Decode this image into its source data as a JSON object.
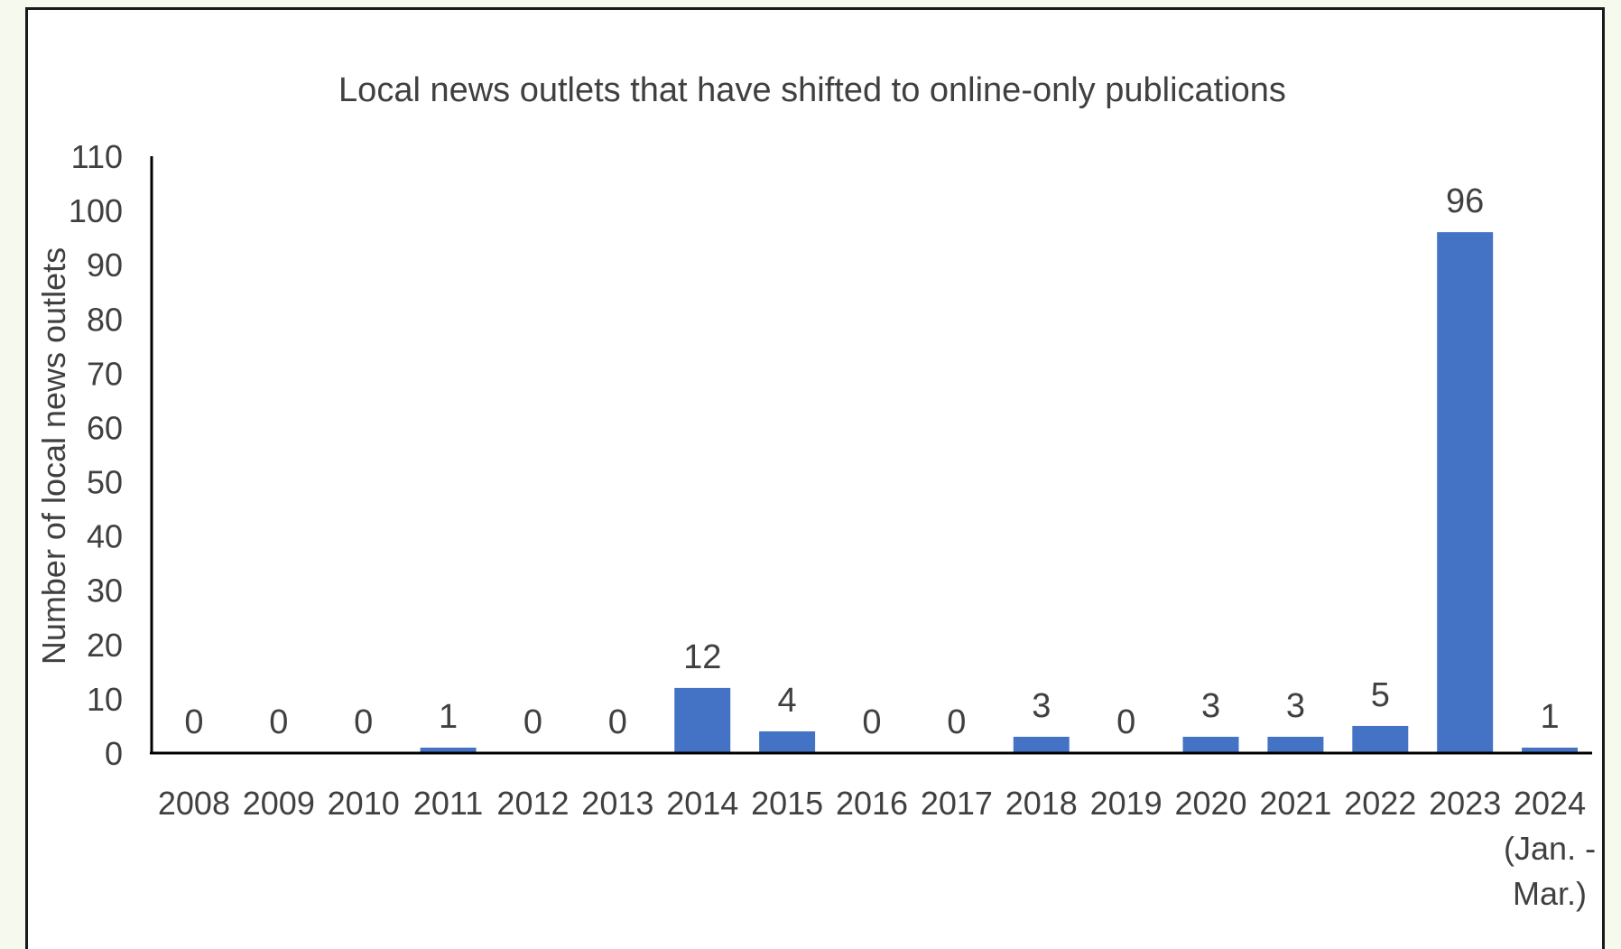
{
  "chart_data": {
    "type": "bar",
    "title": "Local news outlets that have shifted to online-only publications",
    "xlabel": "",
    "ylabel": "Number of local news outlets",
    "ylim": [
      0,
      110
    ],
    "yticks": [
      0,
      10,
      20,
      30,
      40,
      50,
      60,
      70,
      80,
      90,
      100,
      110
    ],
    "grid": false,
    "legend": "none",
    "bar_color": "#4472c4",
    "categories": [
      "2008",
      "2009",
      "2010",
      "2011",
      "2012",
      "2013",
      "2014",
      "2015",
      "2016",
      "2017",
      "2018",
      "2019",
      "2020",
      "2021",
      "2022",
      "2023",
      "2024\n(Jan. -\nMar.)"
    ],
    "values": [
      0,
      0,
      0,
      1,
      0,
      0,
      12,
      4,
      0,
      0,
      3,
      0,
      3,
      3,
      5,
      96,
      1
    ],
    "data_labels": [
      "0",
      "0",
      "0",
      "1",
      "0",
      "0",
      "12",
      "4",
      "0",
      "0",
      "3",
      "0",
      "3",
      "3",
      "5",
      "96",
      "1"
    ]
  }
}
